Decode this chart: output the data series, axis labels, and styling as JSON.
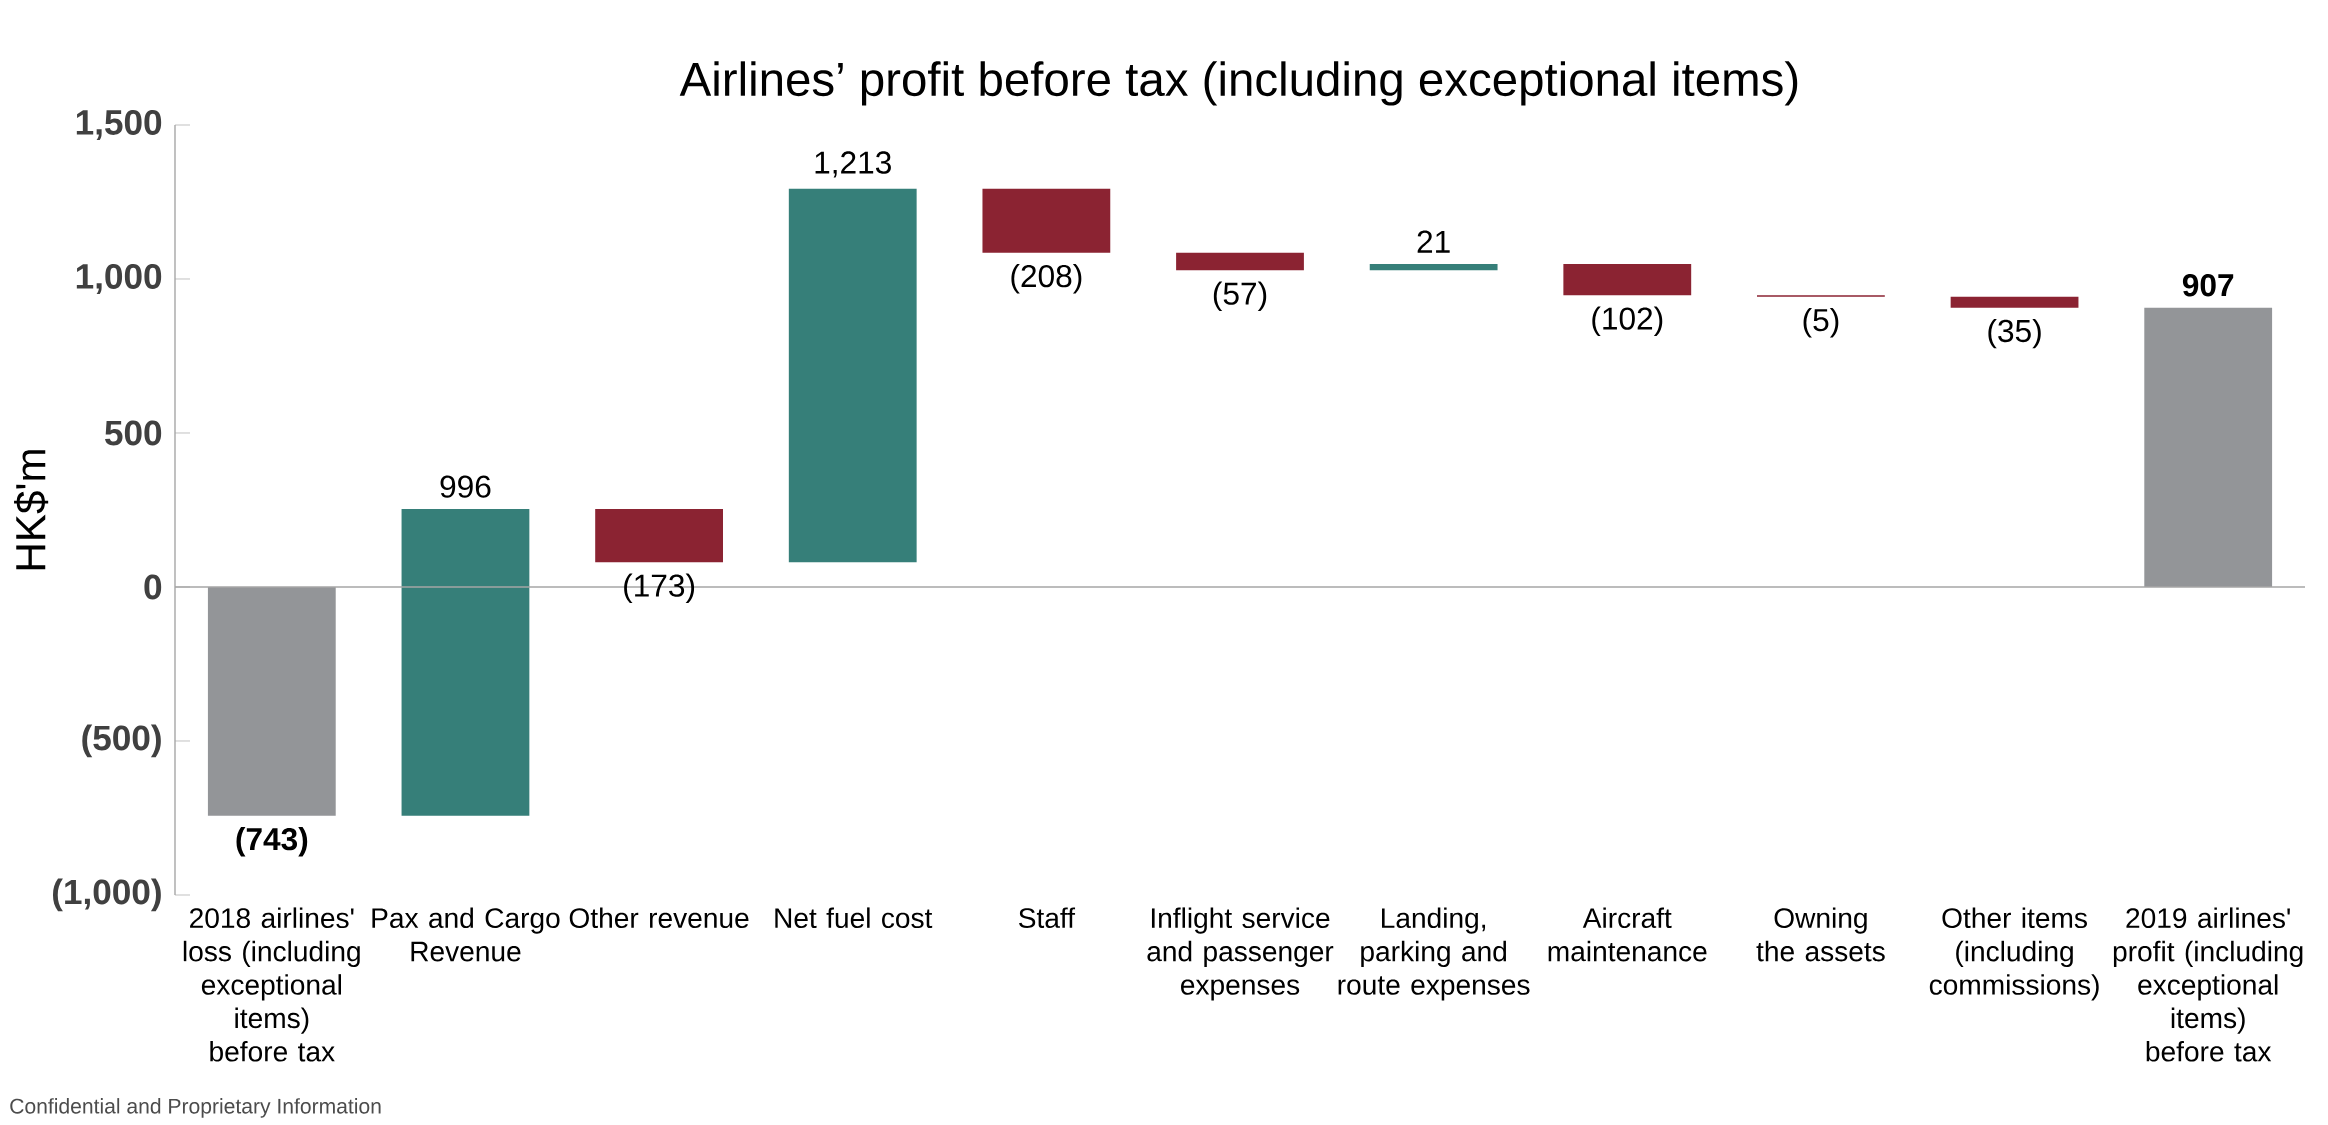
{
  "chart_data": {
    "type": "bar",
    "title": "Airlines’ profit before tax (including exceptional items)",
    "ylabel": "HK$'m",
    "categories": [
      "2018 airlines' loss (including exceptional items) before tax",
      "Pax and Cargo Revenue",
      "Other revenue",
      "Net fuel cost",
      "Staff",
      "Inflight service and passenger expenses",
      "Landing, parking and route expenses",
      "Aircraft maintenance",
      "Owning the assets",
      "Other items (including commissions)",
      "2019 airlines' profit (including exceptional items) before tax"
    ],
    "values": [
      -743,
      996,
      -173,
      1213,
      -208,
      -57,
      21,
      -102,
      -5,
      -35,
      907
    ],
    "base": [
      0,
      -743,
      253,
      80,
      1293,
      1085,
      1028,
      1049,
      947,
      942,
      0
    ],
    "colors": [
      "#939598",
      "#367f79",
      "#8b2332",
      "#367f79",
      "#8b2332",
      "#8b2332",
      "#367f79",
      "#8b2332",
      "#8b2332",
      "#8b2332",
      "#939598"
    ],
    "value_labels": [
      "**(743)**",
      "996",
      "(173)",
      "1,213",
      "(208)",
      "(57)",
      "21",
      "(102)",
      "(5)",
      "(35)",
      "**907**"
    ],
    "ylim": [
      -1000,
      1500
    ],
    "yticks": [
      {
        "value": -1000,
        "label": "(1,000)"
      },
      {
        "value": -500,
        "label": "(500)"
      },
      {
        "value": 0,
        "label": "0"
      },
      {
        "value": 500,
        "label": "500"
      },
      {
        "value": 1000,
        "label": "1,000"
      },
      {
        "value": 1500,
        "label": "1,500"
      }
    ],
    "annotations": [
      "Confidential and Proprietary Information"
    ]
  }
}
